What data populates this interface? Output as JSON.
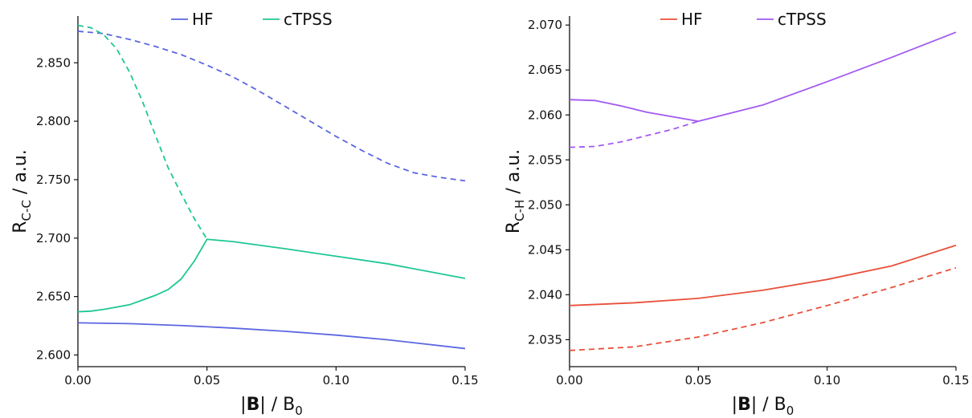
{
  "chart_data": [
    {
      "type": "line",
      "ylabel_main": "R",
      "ylabel_sub": "C-C",
      "ylabel_suffix": " / a.u.",
      "xlabel_pre": "|",
      "xlabel_bold": "B",
      "xlabel_mid": "| / B",
      "xlabel_sub": "0",
      "xlim": [
        0,
        0.15
      ],
      "ylim": [
        2.59,
        2.89
      ],
      "xticks": [
        0.0,
        0.05,
        0.1,
        0.15
      ],
      "xtick_labels": [
        "0.00",
        "0.05",
        "0.10",
        "0.15"
      ],
      "yticks": [
        2.6,
        2.65,
        2.7,
        2.75,
        2.8,
        2.85
      ],
      "ytick_labels": [
        "2.600",
        "2.650",
        "2.700",
        "2.750",
        "2.800",
        "2.850"
      ],
      "legend_placement": "top",
      "legend": [
        {
          "name": "HF",
          "color": "#5b67e0"
        },
        {
          "name": "cTPSS",
          "color": "#1fc795"
        }
      ],
      "series": [
        {
          "color": "#5b67e0",
          "style": "solid",
          "x": [
            0,
            0.02,
            0.04,
            0.06,
            0.08,
            0.1,
            0.12,
            0.15
          ],
          "y": [
            2.6275,
            2.6268,
            2.6252,
            2.623,
            2.6203,
            2.617,
            2.613,
            2.6055
          ]
        },
        {
          "color": "#5b67e0",
          "style": "dashed",
          "x": [
            0,
            0.01,
            0.02,
            0.03,
            0.04,
            0.05,
            0.06,
            0.07,
            0.08,
            0.09,
            0.1,
            0.11,
            0.12,
            0.13,
            0.14,
            0.15
          ],
          "y": [
            2.877,
            2.875,
            2.87,
            2.864,
            2.857,
            2.848,
            2.838,
            2.826,
            2.813,
            2.8,
            2.787,
            2.775,
            2.764,
            2.756,
            2.752,
            2.749
          ]
        },
        {
          "color": "#1fc795",
          "style": "solid",
          "x": [
            0,
            0.005,
            0.01,
            0.015,
            0.02,
            0.025,
            0.03,
            0.035,
            0.04,
            0.045,
            0.05,
            0.06,
            0.08,
            0.1,
            0.12,
            0.15
          ],
          "y": [
            2.637,
            2.6375,
            2.639,
            2.641,
            2.643,
            2.647,
            2.651,
            2.656,
            2.665,
            2.68,
            2.699,
            2.697,
            2.691,
            2.6845,
            2.678,
            2.6655
          ]
        },
        {
          "color": "#1fc795",
          "style": "dashed",
          "x": [
            0,
            0.005,
            0.01,
            0.015,
            0.02,
            0.025,
            0.03,
            0.035,
            0.04,
            0.045,
            0.05
          ],
          "y": [
            2.882,
            2.88,
            2.874,
            2.862,
            2.842,
            2.817,
            2.788,
            2.76,
            2.738,
            2.717,
            2.699
          ]
        }
      ]
    },
    {
      "type": "line",
      "ylabel_main": "R",
      "ylabel_sub": "C-H",
      "ylabel_suffix": " / a.u.",
      "xlabel_pre": "|",
      "xlabel_bold": "B",
      "xlabel_mid": "| / B",
      "xlabel_sub": "0",
      "xlim": [
        0,
        0.15
      ],
      "ylim": [
        2.032,
        2.071
      ],
      "xticks": [
        0.0,
        0.05,
        0.1,
        0.15
      ],
      "xtick_labels": [
        "0.00",
        "0.05",
        "0.10",
        "0.15"
      ],
      "yticks": [
        2.035,
        2.04,
        2.045,
        2.05,
        2.055,
        2.06,
        2.065,
        2.07
      ],
      "ytick_labels": [
        "2.035",
        "2.040",
        "2.045",
        "2.050",
        "2.055",
        "2.060",
        "2.065",
        "2.070"
      ],
      "legend_placement": "top",
      "legend": [
        {
          "name": "HF",
          "color": "#e8503a"
        },
        {
          "name": "cTPSS",
          "color": "#a25af0"
        }
      ],
      "series": [
        {
          "color": "#e8503a",
          "style": "solid",
          "x": [
            0,
            0.025,
            0.05,
            0.075,
            0.1,
            0.125,
            0.15
          ],
          "y": [
            2.0388,
            2.0391,
            2.0396,
            2.0405,
            2.0417,
            2.0432,
            2.0455
          ]
        },
        {
          "color": "#e8503a",
          "style": "dashed",
          "x": [
            0,
            0.025,
            0.05,
            0.075,
            0.1,
            0.125,
            0.15
          ],
          "y": [
            2.0338,
            2.0342,
            2.0353,
            2.0369,
            2.0388,
            2.0408,
            2.043
          ]
        },
        {
          "color": "#a25af0",
          "style": "solid",
          "x": [
            0,
            0.01,
            0.02,
            0.03,
            0.04,
            0.05,
            0.075,
            0.1,
            0.125,
            0.15
          ],
          "y": [
            2.0617,
            2.0616,
            2.061,
            2.0603,
            2.0598,
            2.0593,
            2.0611,
            2.0637,
            2.0664,
            2.0692
          ]
        },
        {
          "color": "#a25af0",
          "style": "dashed",
          "x": [
            0,
            0.01,
            0.02,
            0.03,
            0.04,
            0.05
          ],
          "y": [
            2.0564,
            2.0565,
            2.057,
            2.0577,
            2.0584,
            2.0593
          ]
        }
      ]
    }
  ]
}
